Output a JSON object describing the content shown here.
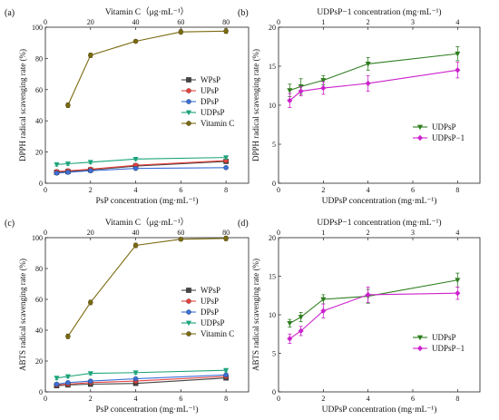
{
  "colors": {
    "WPsP": "#444444",
    "UPsP": "#e8413c",
    "DPsP": "#3a6fd8",
    "UDPsP": "#1aa37a",
    "VitC": "#7a6a0f",
    "UDPsP_right": "#2e7d1e",
    "UDPsP1": "#cc22cc"
  },
  "chart_data": [
    {
      "type": "line",
      "panel_label": "(a)",
      "xlabel": "PsP concentration (mg·mL⁻¹)",
      "ylabel": "DPPH radical scavenging rate (%)",
      "x2label": "Vitamin C（μg·mL⁻¹）",
      "xlim": [
        0,
        9
      ],
      "ylim": [
        0,
        100
      ],
      "x2lim": [
        0,
        90
      ],
      "xticks": [
        0,
        2,
        4,
        6,
        8
      ],
      "yticks": [
        0,
        20,
        40,
        60,
        80,
        100
      ],
      "x2ticks": [
        0,
        20,
        40,
        60,
        80
      ],
      "legend_position": "right-middle",
      "series": [
        {
          "name": "WPsP",
          "key": "WPsP",
          "marker": "square",
          "axis": "x",
          "x": [
            0.5,
            1,
            2,
            4,
            8
          ],
          "y": [
            7,
            7.5,
            8.5,
            11,
            14
          ],
          "err": [
            1,
            1,
            1,
            1,
            1
          ]
        },
        {
          "name": "UPsP",
          "key": "UPsP",
          "marker": "circle",
          "axis": "x",
          "x": [
            0.5,
            1,
            2,
            4,
            8
          ],
          "y": [
            7.5,
            8,
            9,
            11.5,
            14.5
          ],
          "err": [
            1,
            1,
            1,
            1,
            1
          ]
        },
        {
          "name": "DPsP",
          "key": "DPsP",
          "marker": "circle",
          "axis": "x",
          "x": [
            0.5,
            1,
            2,
            4,
            8
          ],
          "y": [
            6.5,
            7,
            8,
            9.5,
            10
          ],
          "err": [
            1,
            1,
            1,
            1,
            1
          ]
        },
        {
          "name": "UDPsP",
          "key": "UDPsP",
          "marker": "triangle-down",
          "axis": "x",
          "x": [
            0.5,
            1,
            2,
            4,
            8
          ],
          "y": [
            12,
            12.5,
            13.5,
            15.5,
            16.5
          ],
          "err": [
            1,
            1,
            1,
            1,
            1
          ]
        },
        {
          "name": "Vitamin C",
          "key": "VitC",
          "marker": "circle",
          "axis": "x2",
          "x": [
            10,
            20,
            40,
            60,
            80
          ],
          "y": [
            50,
            82,
            91,
            97,
            97.5
          ],
          "err": [
            1.5,
            1.5,
            1,
            1.5,
            1.5
          ]
        }
      ]
    },
    {
      "type": "line",
      "panel_label": "(b)",
      "xlabel": "UDPsP concentration (mg·mL⁻¹)",
      "ylabel": "DPPH radical scavenging rate (%)",
      "x2label": "UDPsP−1 concentration (mg·mL⁻¹)",
      "xlim": [
        0,
        9
      ],
      "ylim": [
        0,
        20
      ],
      "x2lim": [
        0,
        4.5
      ],
      "xticks": [
        0,
        2,
        4,
        6,
        8
      ],
      "yticks": [
        0,
        5,
        10,
        15,
        20
      ],
      "x2ticks": [
        0,
        1,
        2,
        3,
        4
      ],
      "legend_position": "right-middle",
      "series": [
        {
          "name": "UDPsP",
          "key": "UDPsP_right",
          "marker": "triangle-down",
          "axis": "x",
          "x": [
            0.5,
            1,
            2,
            4,
            8
          ],
          "y": [
            11.9,
            12.4,
            13.2,
            15.3,
            16.6
          ],
          "err": [
            0.8,
            1.0,
            0.6,
            0.8,
            0.9
          ]
        },
        {
          "name": "UDPsP−1",
          "key": "UDPsP1",
          "marker": "diamond",
          "axis": "x2",
          "x": [
            0.25,
            0.5,
            1,
            2,
            4
          ],
          "y": [
            10.6,
            11.8,
            12.2,
            12.8,
            14.5
          ],
          "err": [
            0.9,
            0.6,
            0.8,
            1.0,
            1.0
          ]
        }
      ]
    },
    {
      "type": "line",
      "panel_label": "(c)",
      "xlabel": "PsP concentration (mg·mL⁻¹)",
      "ylabel": "ABTS radical scavenging rate (%)",
      "x2label": "Vitamin C（μg·mL⁻¹）",
      "xlim": [
        0,
        9
      ],
      "ylim": [
        0,
        100
      ],
      "x2lim": [
        0,
        90
      ],
      "xticks": [
        0,
        2,
        4,
        6,
        8
      ],
      "yticks": [
        0,
        20,
        40,
        60,
        80,
        100
      ],
      "x2ticks": [
        0,
        20,
        40,
        60,
        80
      ],
      "legend_position": "right-middle",
      "series": [
        {
          "name": "WPsP",
          "key": "WPsP",
          "marker": "square",
          "axis": "x",
          "x": [
            0.5,
            1,
            2,
            4,
            8
          ],
          "y": [
            4,
            4.5,
            5,
            5.5,
            9
          ],
          "err": [
            1,
            1,
            1,
            1,
            1
          ]
        },
        {
          "name": "UPsP",
          "key": "UPsP",
          "marker": "circle",
          "axis": "x",
          "x": [
            0.5,
            1,
            2,
            4,
            8
          ],
          "y": [
            4.5,
            5,
            6,
            7,
            10
          ],
          "err": [
            1,
            1,
            1,
            1,
            1
          ]
        },
        {
          "name": "DPsP",
          "key": "DPsP",
          "marker": "circle",
          "axis": "x",
          "x": [
            0.5,
            1,
            2,
            4,
            8
          ],
          "y": [
            5,
            6,
            7,
            8.5,
            11
          ],
          "err": [
            1,
            1,
            1,
            1,
            1
          ]
        },
        {
          "name": "UDPsP",
          "key": "UDPsP",
          "marker": "triangle-down",
          "axis": "x",
          "x": [
            0.5,
            1,
            2,
            4,
            8
          ],
          "y": [
            9,
            10,
            12,
            12.5,
            14
          ],
          "err": [
            1,
            1,
            1,
            1,
            1
          ]
        },
        {
          "name": "Vitamin C",
          "key": "VitC",
          "marker": "circle",
          "axis": "x2",
          "x": [
            10,
            20,
            40,
            60,
            80
          ],
          "y": [
            36,
            58,
            95,
            99,
            99.5
          ],
          "err": [
            1.5,
            1.5,
            1.5,
            1,
            1.5
          ]
        }
      ]
    },
    {
      "type": "line",
      "panel_label": "(d)",
      "xlabel": "UDPsP concentration (mg·mL⁻¹)",
      "ylabel": "ABTS radical scavenging rate (%)",
      "x2label": "UDPsP−1 concentration (mg·mL⁻¹)",
      "xlim": [
        0,
        9
      ],
      "ylim": [
        0,
        20
      ],
      "x2lim": [
        0,
        4.5
      ],
      "xticks": [
        0,
        2,
        4,
        6,
        8
      ],
      "yticks": [
        0,
        5,
        10,
        15,
        20
      ],
      "x2ticks": [
        0,
        1,
        2,
        3,
        4
      ],
      "legend_position": "right-middle",
      "series": [
        {
          "name": "UDPsP",
          "key": "UDPsP_right",
          "marker": "triangle-down",
          "axis": "x",
          "x": [
            0.5,
            1,
            2,
            4,
            8
          ],
          "y": [
            8.9,
            9.7,
            12.0,
            12.4,
            14.5
          ],
          "err": [
            0.5,
            0.6,
            0.6,
            0.9,
            0.9
          ]
        },
        {
          "name": "UDPsP−1",
          "key": "UDPsP1",
          "marker": "diamond",
          "axis": "x2",
          "x": [
            0.25,
            0.5,
            1,
            2,
            4
          ],
          "y": [
            6.9,
            7.9,
            10.5,
            12.6,
            12.8
          ],
          "err": [
            0.6,
            0.6,
            0.9,
            1.0,
            0.8
          ]
        }
      ]
    }
  ]
}
